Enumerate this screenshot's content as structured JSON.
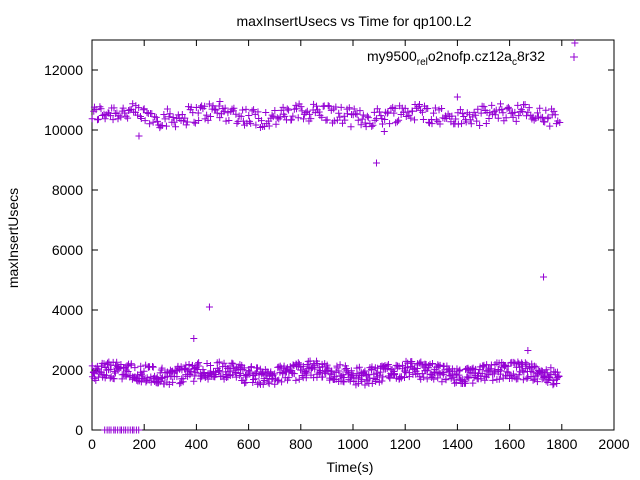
{
  "chart_data": {
    "type": "scatter",
    "title": "maxInsertUsecs vs Time for qp100.L2",
    "xlabel": "Time(s)",
    "ylabel": "maxInsertUsecs",
    "xlim": [
      0,
      2000
    ],
    "ylim": [
      0,
      13000
    ],
    "x_ticks": [
      0,
      200,
      400,
      600,
      800,
      1000,
      1200,
      1400,
      1600,
      1800,
      2000
    ],
    "y_ticks": [
      0,
      2000,
      4000,
      6000,
      8000,
      10000,
      12000
    ],
    "x_tick_labels": [
      "0",
      "200",
      "400",
      "600",
      "800",
      "1000",
      "1200",
      "1400",
      "1600",
      "1800",
      "2000"
    ],
    "y_tick_labels": [
      "0",
      "2000",
      "4000",
      "6000",
      "8000",
      "10000",
      "12000"
    ],
    "grid": false,
    "legend_position": "top-right",
    "marker": "+",
    "series": [
      {
        "name": "my9500_rel_o2nofp.cz12a_c8r32",
        "legend_parts": {
          "a": "my9500",
          "b": "rel",
          "c": "o",
          "d": "2nofp.cz12a",
          "e": "c",
          "f": "8r32"
        },
        "color": "#9400d3",
        "bands": [
          {
            "label": "upper",
            "x_range": [
              0,
              1790
            ],
            "y_center": 10500,
            "y_spread": 320
          },
          {
            "label": "lower",
            "x_range": [
              0,
              1790
            ],
            "y_center": 1900,
            "y_spread": 300
          },
          {
            "label": "zero",
            "x_range": [
              50,
              180
            ],
            "y_center": 0,
            "y_spread": 0
          }
        ],
        "outliers": [
          {
            "x": 180,
            "y": 9800
          },
          {
            "x": 390,
            "y": 3050
          },
          {
            "x": 450,
            "y": 4100
          },
          {
            "x": 490,
            "y": 10950
          },
          {
            "x": 1090,
            "y": 8900
          },
          {
            "x": 1120,
            "y": 9950
          },
          {
            "x": 1400,
            "y": 11100
          },
          {
            "x": 1670,
            "y": 2650
          },
          {
            "x": 1730,
            "y": 5100
          },
          {
            "x": 1850,
            "y": 12900
          }
        ]
      }
    ]
  }
}
